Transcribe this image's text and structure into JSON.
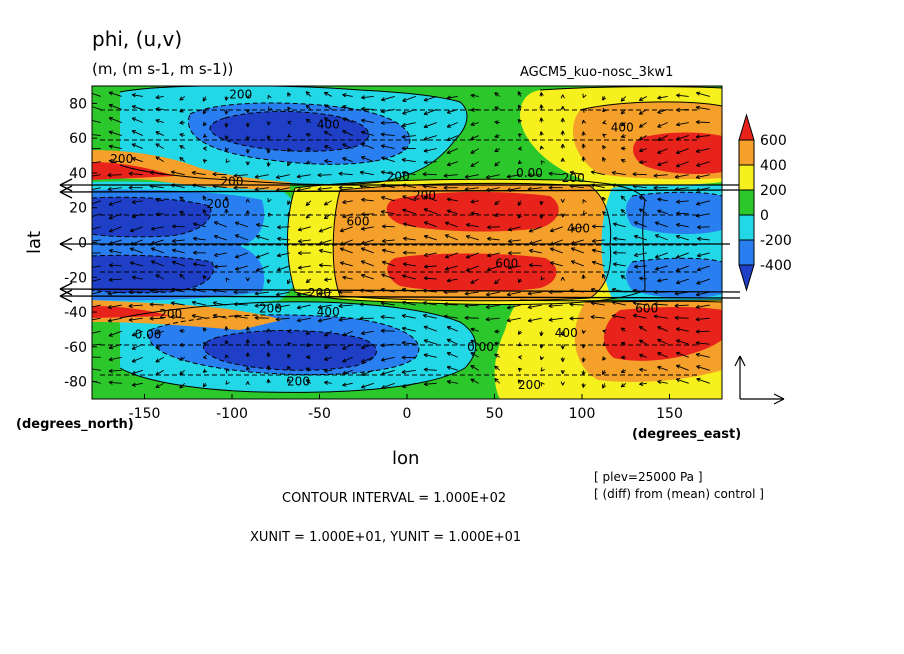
{
  "chart_data": {
    "type": "contour",
    "title": "phi, (u,v)",
    "units": "(m, (m s-1, m s-1))",
    "run_label": "AGCM5_kuo-nosc_3kw1",
    "xlabel": "lon",
    "ylabel": "lat",
    "x_unit_label": "(degrees_east)",
    "y_unit_label": "(degrees_north)",
    "xlim": [
      -180,
      180
    ],
    "ylim": [
      -90,
      90
    ],
    "x_ticks": [
      -150,
      -100,
      -50,
      0,
      50,
      100,
      150
    ],
    "y_ticks": [
      80,
      60,
      40,
      20,
      0,
      -20,
      -40,
      -60,
      -80
    ],
    "colorbar": {
      "levels": [
        600,
        400,
        200,
        0,
        -200,
        -400
      ],
      "bins": [
        {
          "color": "#e8231c"
        },
        {
          "color": "#f5a02a"
        },
        {
          "color": "#f5f01e"
        },
        {
          "color": "#2bc72b"
        },
        {
          "color": "#22d7e6"
        },
        {
          "color": "#2a7ff0"
        },
        {
          "color": "#1f3fc7"
        }
      ]
    },
    "contour_labels": [
      {
        "text": "200",
        "lon": -95,
        "lat": 85
      },
      {
        "text": "400",
        "lon": -45,
        "lat": 68
      },
      {
        "text": "200",
        "lon": -163,
        "lat": 48
      },
      {
        "text": "200",
        "lon": -100,
        "lat": 35
      },
      {
        "text": "200",
        "lon": -108,
        "lat": 22
      },
      {
        "text": "200",
        "lon": -5,
        "lat": 38
      },
      {
        "text": "0.00",
        "lon": 70,
        "lat": 40
      },
      {
        "text": "200",
        "lon": 95,
        "lat": 37
      },
      {
        "text": "400",
        "lon": 123,
        "lat": 66
      },
      {
        "text": "200",
        "lon": 10,
        "lat": 27
      },
      {
        "text": "600",
        "lon": -28,
        "lat": 12
      },
      {
        "text": "400",
        "lon": 98,
        "lat": 8
      },
      {
        "text": "600",
        "lon": 57,
        "lat": -12
      },
      {
        "text": "200",
        "lon": -50,
        "lat": -29
      },
      {
        "text": "200",
        "lon": -78,
        "lat": -38
      },
      {
        "text": "400",
        "lon": -45,
        "lat": -40
      },
      {
        "text": "0.00",
        "lon": -148,
        "lat": -53
      },
      {
        "text": "200",
        "lon": -135,
        "lat": -41
      },
      {
        "text": "0.00",
        "lon": 42,
        "lat": -60
      },
      {
        "text": "400",
        "lon": 91,
        "lat": -52
      },
      {
        "text": "600",
        "lon": 137,
        "lat": -38
      },
      {
        "text": "200",
        "lon": -62,
        "lat": -80
      },
      {
        "text": "200",
        "lon": 70,
        "lat": -82
      }
    ],
    "vector_reference": {
      "xunit": "1.000E+01",
      "yunit": "1.000E+01"
    },
    "contour_interval": "1.000E+02",
    "annotations": [
      "CONTOUR INTERVAL = 1.000E+02",
      "XUNIT = 1.000E+01, YUNIT = 1.000E+01"
    ],
    "plev_note": "[ plev=25000 Pa ]",
    "diff_note": "[ (diff) from (mean) control ]"
  }
}
